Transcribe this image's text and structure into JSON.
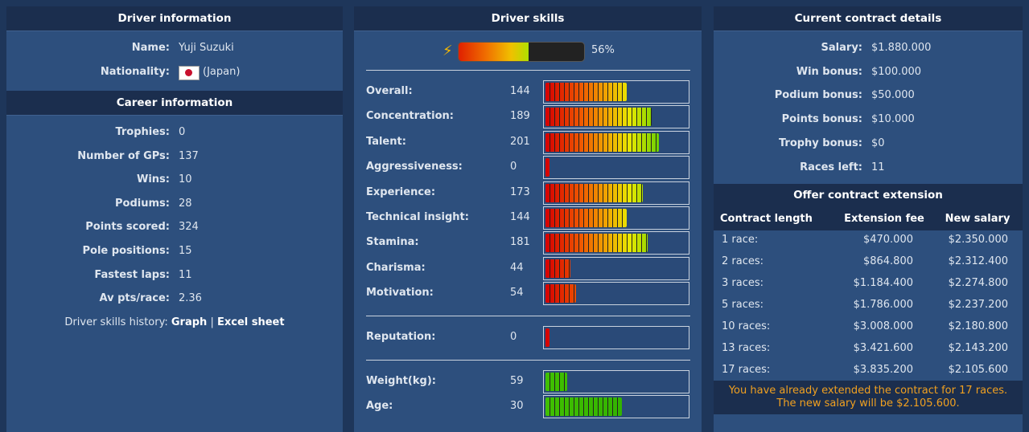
{
  "driver_information": {
    "title": "Driver information",
    "name": {
      "label": "Name:",
      "value": "Yuji Suzuki"
    },
    "nationality": {
      "label": "Nationality:",
      "value": "(Japan)"
    }
  },
  "career_information": {
    "title": "Career information",
    "rows": [
      {
        "label": "Trophies:",
        "value": 0
      },
      {
        "label": "Number of GPs:",
        "value": 137
      },
      {
        "label": "Wins:",
        "value": 10
      },
      {
        "label": "Podiums:",
        "value": 28
      },
      {
        "label": "Points scored:",
        "value": 324
      },
      {
        "label": "Pole positions:",
        "value": 15
      },
      {
        "label": "Fastest laps:",
        "value": 11
      },
      {
        "label": "Av pts/race:",
        "value": 2.36
      }
    ],
    "history": {
      "label": "Driver skills history:",
      "links": [
        "Graph",
        "Excel sheet"
      ],
      "separator": "|"
    }
  },
  "driver_skills": {
    "title": "Driver skills",
    "energy": {
      "value": 56,
      "label": "56%"
    },
    "groups": [
      [
        {
          "label": "Overall:",
          "value": 144
        },
        {
          "label": "Concentration:",
          "value": 189
        },
        {
          "label": "Talent:",
          "value": 201
        },
        {
          "label": "Aggressiveness:",
          "value": 0
        },
        {
          "label": "Experience:",
          "value": 173
        },
        {
          "label": "Technical insight:",
          "value": 144
        },
        {
          "label": "Stamina:",
          "value": 181
        },
        {
          "label": "Charisma:",
          "value": 44
        },
        {
          "label": "Motivation:",
          "value": 54
        }
      ],
      [
        {
          "label": "Reputation:",
          "value": 0
        }
      ],
      [
        {
          "label": "Weight(kg):",
          "value": 59
        },
        {
          "label": "Age:",
          "value": 30
        }
      ]
    ]
  },
  "contract": {
    "title": "Current contract details",
    "rows": [
      {
        "label": "Salary:",
        "value": "$1.880.000"
      },
      {
        "label": "Win bonus:",
        "value": "$100.000"
      },
      {
        "label": "Podium bonus:",
        "value": "$50.000"
      },
      {
        "label": "Points bonus:",
        "value": "$10.000"
      },
      {
        "label": "Trophy bonus:",
        "value": "$0"
      },
      {
        "label": "Races left:",
        "value": 11
      }
    ]
  },
  "extension": {
    "title": "Offer contract extension",
    "columns": [
      "Contract length",
      "Extension fee",
      "New salary"
    ],
    "rows": [
      [
        "1 race:",
        "$470.000",
        "$2.350.000"
      ],
      [
        "2 races:",
        "$864.800",
        "$2.312.400"
      ],
      [
        "3 races:",
        "$1.184.400",
        "$2.274.800"
      ],
      [
        "5 races:",
        "$1.786.000",
        "$2.237.200"
      ],
      [
        "10 races:",
        "$3.008.000",
        "$2.180.800"
      ],
      [
        "13 races:",
        "$3.421.600",
        "$2.143.200"
      ],
      [
        "17 races:",
        "$3.835.200",
        "$2.105.600"
      ]
    ],
    "note": [
      "You have already extended the contract for 17 races.",
      "The new salary will be $2.105.600."
    ]
  }
}
